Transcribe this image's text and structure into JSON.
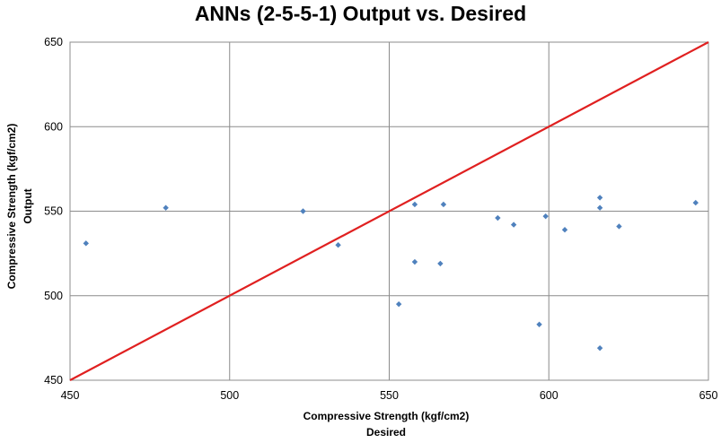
{
  "chart_data": {
    "type": "scatter",
    "title": "ANNs (2-5-5-1) Output vs. Desired",
    "xlabel": [
      "Compressive Strength (kgf/cm2)",
      "Desired"
    ],
    "ylabel": [
      "Compressive Strength (kgf/cm2)",
      "Output"
    ],
    "xlim": [
      450,
      650
    ],
    "ylim": [
      450,
      650
    ],
    "xticks": [
      450,
      500,
      550,
      600,
      650
    ],
    "yticks": [
      450,
      500,
      550,
      600,
      650
    ],
    "grid": true,
    "legend": "none",
    "point_color": "#4F81BD",
    "line_color": "#E02020",
    "series": [
      {
        "points": [
          [
            455,
            531
          ],
          [
            480,
            552
          ],
          [
            523,
            550
          ],
          [
            534,
            530
          ],
          [
            553,
            495
          ],
          [
            558,
            520
          ],
          [
            558,
            554
          ],
          [
            566,
            519
          ],
          [
            567,
            554
          ],
          [
            584,
            546
          ],
          [
            589,
            542
          ],
          [
            597,
            483
          ],
          [
            599,
            547
          ],
          [
            605,
            539
          ],
          [
            616,
            558
          ],
          [
            616,
            552
          ],
          [
            616,
            469
          ],
          [
            622,
            541
          ],
          [
            646,
            555
          ]
        ]
      }
    ],
    "reference_line": [
      [
        450,
        450
      ],
      [
        650,
        650
      ]
    ]
  }
}
